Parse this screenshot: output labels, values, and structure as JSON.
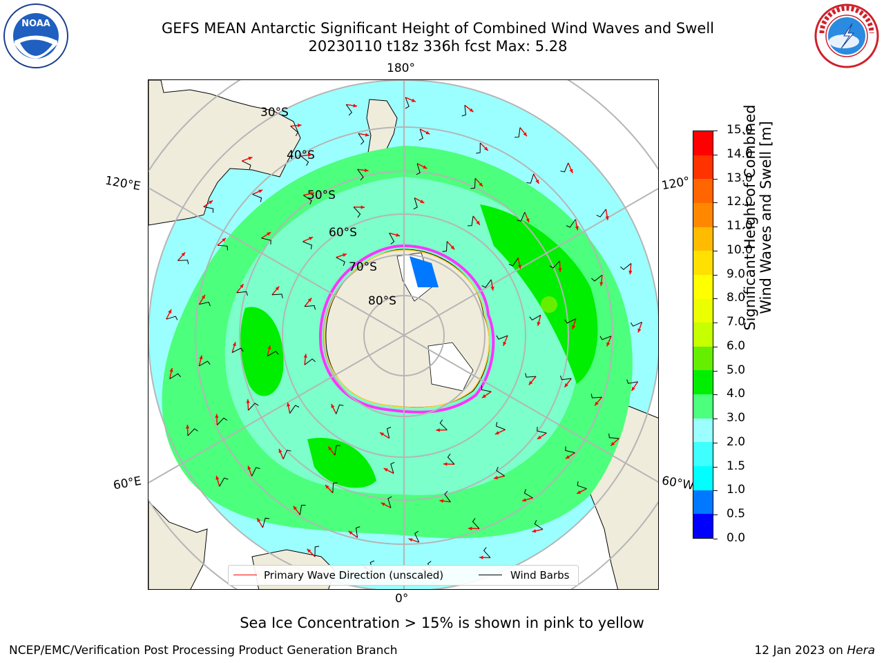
{
  "title": {
    "line1": "GEFS MEAN Antarctic Significant Height of Combined Wind Waves and Swell",
    "line2": "20230110 t18z 336h fcst   Max: 5.28"
  },
  "logos": {
    "left": {
      "text": "NOAA",
      "ring_text": "NATIONAL OCEANIC AND ATMOSPHERIC ADMINISTRATION · U.S. DEPARTMENT OF COMMERCE"
    },
    "right": {
      "ring_text": "NATIONAL WEATHER SERVICE"
    }
  },
  "map": {
    "projection": "south-polar-stereographic",
    "longitude_labels": {
      "top": "180°",
      "bottom": "0°",
      "left_upper": "120°E",
      "left_lower": "60°E",
      "right_upper": "120°",
      "right_lower": "60°W"
    },
    "latitude_labels": [
      "30°S",
      "40°S",
      "50°S",
      "60°S",
      "70°S",
      "80°S"
    ],
    "colors": {
      "land": "#efecdc",
      "ice_sheet": "#ffffff",
      "sea_ice_edge": "#ff33ff",
      "grid": "#b5b5b5",
      "wave_arrow": "#ff0000",
      "wind_barb": "#000000"
    }
  },
  "legend": {
    "primary_wave": "Primary Wave Direction (unscaled)",
    "wind_barbs": "Wind Barbs"
  },
  "colorbar": {
    "label": "Significant Height of Combined Wind Waves and Swell [m]",
    "ticks": [
      "0.0",
      "0.5",
      "1.0",
      "1.5",
      "2.0",
      "3.0",
      "4.0",
      "5.0",
      "6.0",
      "7.0",
      "8.0",
      "9.0",
      "10.0",
      "11.0",
      "12.0",
      "13.0",
      "14.0",
      "15.0"
    ],
    "colors": [
      "#0000ff",
      "#0078ff",
      "#00ffff",
      "#40ffff",
      "#9cffff",
      "#4cff7c",
      "#00ee00",
      "#66ee00",
      "#c6ff00",
      "#ecff00",
      "#ffff00",
      "#ffe000",
      "#ffbb00",
      "#ff8800",
      "#ff6600",
      "#ff3300",
      "#ff0000"
    ],
    "units": "m",
    "range": [
      0.0,
      15.0
    ]
  },
  "footer": {
    "note": "Sea Ice Concentration > 15% is shown in pink to yellow",
    "credit": "NCEP/EMC/Verification Post Processing Product Generation Branch",
    "date": "12 Jan 2023 on ",
    "machine": "Hera"
  }
}
